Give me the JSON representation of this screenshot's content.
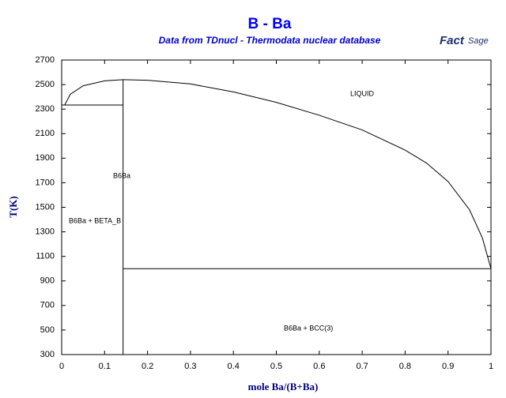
{
  "chart_data": {
    "type": "line",
    "title": "B - Ba",
    "subtitle": "Data from TDnucl - Thermodata nuclear database",
    "logo": {
      "bold": "Fact",
      "light": "Sage"
    },
    "xlabel": "mole Ba/(B+Ba)",
    "ylabel": "T(K)",
    "xlim": [
      0,
      1
    ],
    "ylim": [
      300,
      2700
    ],
    "xticks": [
      0,
      0.1,
      0.2,
      0.3,
      0.4,
      0.5,
      0.6,
      0.7,
      0.8,
      0.9,
      1
    ],
    "yticks": [
      300,
      500,
      700,
      900,
      1100,
      1300,
      1500,
      1700,
      1900,
      2100,
      2300,
      2500,
      2700
    ],
    "color": "#000000",
    "lines": [
      {
        "x": [
          0.007,
          0.02,
          0.05,
          0.1,
          0.143
        ],
        "values": [
          2333,
          2420,
          2490,
          2530,
          2540
        ]
      },
      {
        "x": [
          0.143,
          0.2,
          0.3,
          0.4,
          0.5,
          0.6,
          0.7,
          0.8,
          0.85,
          0.9,
          0.95,
          0.98,
          1.0
        ],
        "values": [
          2540,
          2535,
          2505,
          2440,
          2355,
          2250,
          2130,
          1966,
          1860,
          1710,
          1480,
          1250,
          1000
        ]
      },
      {
        "x": [
          0,
          0.143
        ],
        "values": [
          2333,
          2333
        ]
      },
      {
        "x": [
          0.143,
          0.143
        ],
        "values": [
          300,
          2540
        ]
      },
      {
        "x": [
          0.143,
          1.0
        ],
        "values": [
          1000,
          1000
        ]
      }
    ],
    "annotations": [
      "LIQUID",
      "B6Ba",
      "B6Ba + BETA_B",
      "B6Ba + BCC(3)"
    ]
  }
}
